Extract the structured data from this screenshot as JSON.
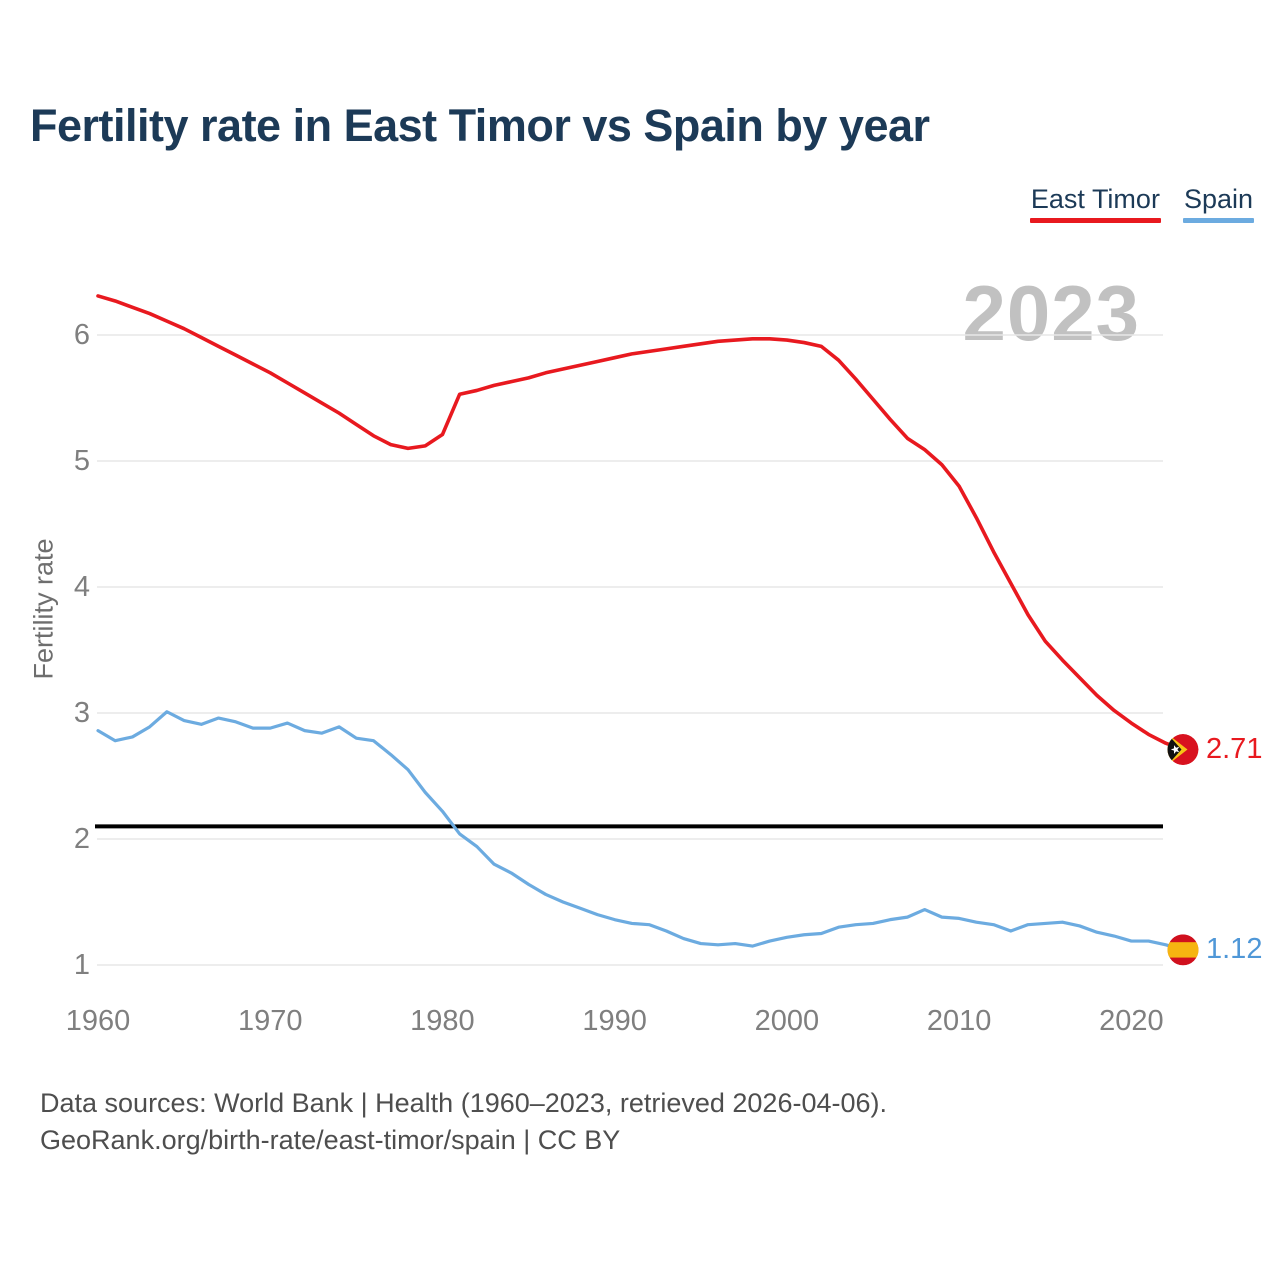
{
  "page": {
    "title": "Fertility rate in East Timor vs Spain by year"
  },
  "legend": {
    "items": [
      {
        "label": "East Timor",
        "color": "#e8191f"
      },
      {
        "label": "Spain",
        "color": "#6cabe0"
      }
    ]
  },
  "watermark": {
    "text": "2023"
  },
  "y_axis": {
    "label": "Fertility rate"
  },
  "footer": {
    "line1": "Data sources: World Bank | Health (1960–2023, retrieved 2026-04-06).",
    "line2": "GeoRank.org/birth-rate/east-timor/spain | CC BY"
  },
  "chart_data": {
    "type": "line",
    "title": "Fertility rate in East Timor vs Spain by year",
    "xlabel": "",
    "ylabel": "Fertility rate",
    "ylim": [
      1,
      6.5
    ],
    "yticks": [
      1,
      2,
      3,
      4,
      5,
      6
    ],
    "xticks": [
      1960,
      1970,
      1980,
      1990,
      2000,
      2010,
      2020
    ],
    "grid": true,
    "legend_position": "top-right",
    "reference_line": {
      "value": 2.1,
      "color": "#000000"
    },
    "x": [
      1960,
      1961,
      1962,
      1963,
      1964,
      1965,
      1966,
      1967,
      1968,
      1969,
      1970,
      1971,
      1972,
      1973,
      1974,
      1975,
      1976,
      1977,
      1978,
      1979,
      1980,
      1981,
      1982,
      1983,
      1984,
      1985,
      1986,
      1987,
      1988,
      1989,
      1990,
      1991,
      1992,
      1993,
      1994,
      1995,
      1996,
      1997,
      1998,
      1999,
      2000,
      2001,
      2002,
      2003,
      2004,
      2005,
      2006,
      2007,
      2008,
      2009,
      2010,
      2011,
      2012,
      2013,
      2014,
      2015,
      2016,
      2017,
      2018,
      2019,
      2020,
      2021,
      2022,
      2023
    ],
    "series": [
      {
        "name": "East Timor",
        "color": "#e8191f",
        "values": [
          6.31,
          6.27,
          6.22,
          6.17,
          6.11,
          6.05,
          5.98,
          5.91,
          5.84,
          5.77,
          5.7,
          5.62,
          5.54,
          5.46,
          5.38,
          5.29,
          5.2,
          5.13,
          5.1,
          5.12,
          5.21,
          5.53,
          5.56,
          5.6,
          5.63,
          5.66,
          5.7,
          5.73,
          5.76,
          5.79,
          5.82,
          5.85,
          5.87,
          5.89,
          5.91,
          5.93,
          5.95,
          5.96,
          5.97,
          5.97,
          5.96,
          5.94,
          5.91,
          5.8,
          5.65,
          5.49,
          5.33,
          5.18,
          5.09,
          4.97,
          4.8,
          4.55,
          4.28,
          4.03,
          3.78,
          3.57,
          3.42,
          3.28,
          3.14,
          3.02,
          2.92,
          2.83,
          2.76,
          2.71
        ]
      },
      {
        "name": "Spain",
        "color": "#6cabe0",
        "values": [
          2.86,
          2.78,
          2.81,
          2.89,
          3.01,
          2.94,
          2.91,
          2.96,
          2.93,
          2.88,
          2.88,
          2.92,
          2.86,
          2.84,
          2.89,
          2.8,
          2.78,
          2.67,
          2.55,
          2.37,
          2.22,
          2.04,
          1.94,
          1.8,
          1.73,
          1.64,
          1.56,
          1.5,
          1.45,
          1.4,
          1.36,
          1.33,
          1.32,
          1.27,
          1.21,
          1.17,
          1.16,
          1.17,
          1.15,
          1.19,
          1.22,
          1.24,
          1.25,
          1.3,
          1.32,
          1.33,
          1.36,
          1.38,
          1.44,
          1.38,
          1.37,
          1.34,
          1.32,
          1.27,
          1.32,
          1.33,
          1.34,
          1.31,
          1.26,
          1.23,
          1.19,
          1.19,
          1.16,
          1.12
        ]
      }
    ],
    "end_labels": [
      {
        "series": "East Timor",
        "value": "2.71",
        "color": "#e8191f",
        "flag": "east-timor"
      },
      {
        "series": "Spain",
        "value": "1.12",
        "color": "#4f97d7",
        "flag": "spain"
      }
    ]
  }
}
